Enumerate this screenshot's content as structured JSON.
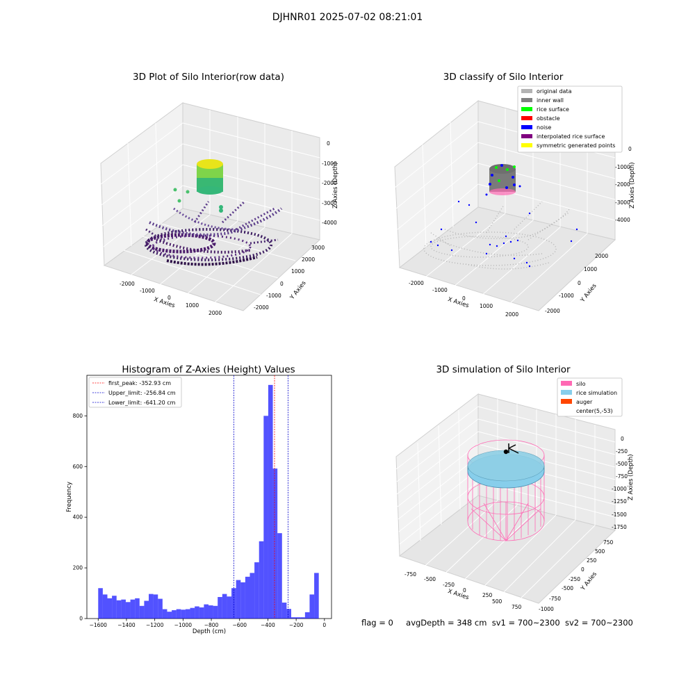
{
  "suptitle": "DJHNR01 2025-07-02 08:21:01",
  "panel1": {
    "title": "3D Plot of Silo Interior(row data)",
    "xlabel": "X Axies",
    "ylabel": "Y Axies",
    "zlabel": "Z Axies (Depth)",
    "xticks": [
      "-2000",
      "-1000",
      "0",
      "1000",
      "2000"
    ],
    "yticks": [
      "-2000",
      "-1000",
      "0",
      "1000",
      "2000",
      "3000"
    ],
    "zticks": [
      "0",
      "-1000",
      "-2000",
      "-3000",
      "-4000"
    ]
  },
  "panel2": {
    "title": "3D classify of Silo Interior",
    "xlabel": "X Axies",
    "ylabel": "Y Axies",
    "zlabel": "Z Axies (Depth)",
    "xticks": [
      "-2000",
      "-1000",
      "0",
      "1000",
      "2000"
    ],
    "yticks": [
      "-2000",
      "-1000",
      "0",
      "1000",
      "2000"
    ],
    "zticks": [
      "0",
      "-1000",
      "-2000",
      "-3000",
      "-4000"
    ],
    "legend": [
      {
        "label": "original data",
        "color": "#b3b3b3"
      },
      {
        "label": "inner wall",
        "color": "#808080"
      },
      {
        "label": "rice surface",
        "color": "#00ff00"
      },
      {
        "label": "obstacle",
        "color": "#ff0000"
      },
      {
        "label": "noise",
        "color": "#0000ff"
      },
      {
        "label": "interpolated rice surface",
        "color": "#800080"
      },
      {
        "label": "symmetric generated points",
        "color": "#ffff00"
      }
    ]
  },
  "panel4": {
    "title": "3D simulation of Silo Interior",
    "xlabel": "X Axies",
    "ylabel": "Y Axies",
    "zlabel": "Z Axies (Depth)",
    "xticks": [
      "-750",
      "-500",
      "-250",
      "0",
      "250",
      "500",
      "750"
    ],
    "yticks": [
      "-1000",
      "-750",
      "-500",
      "-250",
      "0",
      "250",
      "500",
      "750"
    ],
    "zticks": [
      "0",
      "-250",
      "-500",
      "-750",
      "-1000",
      "-1250",
      "-1500",
      "-1750"
    ],
    "legend": [
      {
        "label": "silo",
        "color": "#ff69b4"
      },
      {
        "label": "rice simulation",
        "color": "#87ceeb"
      },
      {
        "label": "auger",
        "color": "#ff4500"
      },
      {
        "label": "center(5,-53)",
        "color": "#ffffff"
      }
    ]
  },
  "chart_data": [
    {
      "type": "histogram",
      "title": "Histogram of Z-Axies (Height) Values",
      "xlabel": "Depth (cm)",
      "ylabel": "Frequency",
      "xlim": [
        -1680,
        50
      ],
      "ylim": [
        0,
        960
      ],
      "xticks": [
        -1600,
        -1400,
        -1200,
        -1000,
        -800,
        -600,
        -400,
        -200,
        0
      ],
      "yticks": [
        0,
        200,
        400,
        600,
        800
      ],
      "bin_start": -1600,
      "bin_width": 32.5,
      "bar_color": "#0000ff",
      "values": [
        120,
        95,
        80,
        90,
        72,
        75,
        65,
        75,
        80,
        50,
        70,
        97,
        95,
        78,
        37,
        27,
        33,
        37,
        35,
        37,
        42,
        48,
        44,
        56,
        52,
        50,
        85,
        97,
        87,
        120,
        152,
        143,
        165,
        180,
        222,
        305,
        800,
        922,
        592,
        337,
        63,
        38,
        5,
        5,
        5,
        25,
        95,
        180
      ],
      "vlines": [
        {
          "label": "first_peak: -352.93 cm",
          "x": -352.93,
          "color": "#ff0000"
        },
        {
          "label": "Upper_limit: -256.84 cm",
          "x": -256.84,
          "color": "#0000cc"
        },
        {
          "label": "Lower_limit: -641.20 cm",
          "x": -641.2,
          "color": "#0000cc"
        }
      ],
      "legend_position": "upper-left"
    }
  ],
  "status": {
    "flag": "flag = 0",
    "avg_depth": "avgDepth = 348 cm",
    "sv1": "sv1 = 700~2300",
    "sv2": "sv2 = 700~2300"
  }
}
